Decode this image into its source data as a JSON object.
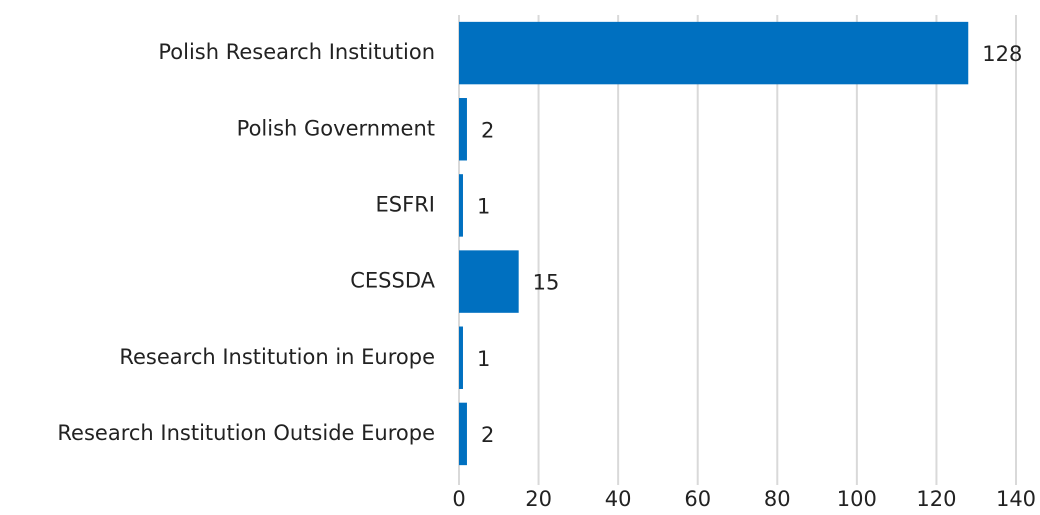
{
  "chart_data": {
    "type": "bar",
    "orientation": "horizontal",
    "categories": [
      "Polish Research Institution",
      "Polish Government",
      "ESFRI",
      "CESSDA",
      "Research Institution in Europe",
      "Research Institution Outside Europe"
    ],
    "values": [
      128,
      2,
      1,
      15,
      1,
      2
    ],
    "color": "#0070c0",
    "xlim": [
      0,
      140
    ],
    "xticks": [
      0,
      20,
      40,
      60,
      80,
      100,
      120,
      140
    ],
    "grid": true
  }
}
